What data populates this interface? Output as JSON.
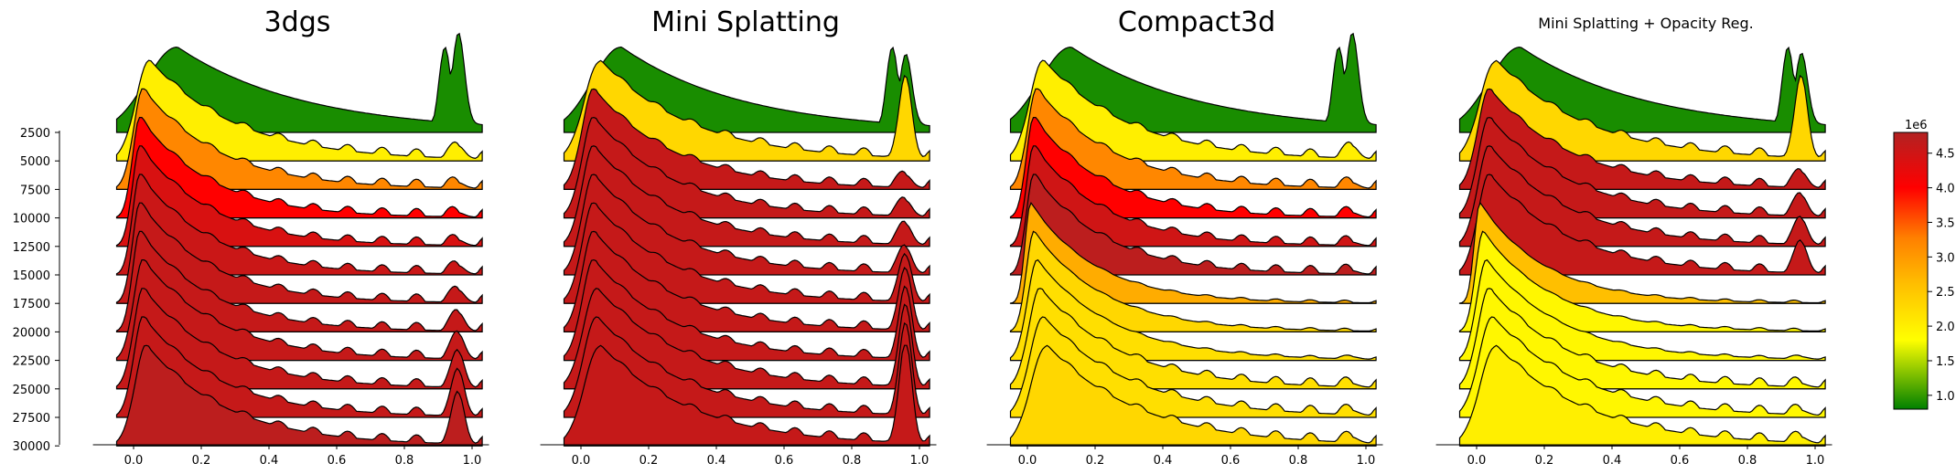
{
  "figure": {
    "panels": [
      {
        "title": "3dgs"
      },
      {
        "title": "Mini Splatting"
      },
      {
        "title": "Compact3d"
      },
      {
        "title": "Mini Splatting + Opacity Reg."
      }
    ],
    "colorbar": {
      "multiplier_label": "1e6",
      "tick_labels": [
        "1.0",
        "1.5",
        "2.0",
        "2.5",
        "3.0",
        "3.5",
        "4.0",
        "4.5"
      ]
    }
  },
  "chart_data": {
    "type": "area",
    "description_kind": "ridgeline (joyplot) of opacity distributions per training iteration",
    "x_ticks": [
      0.0,
      0.2,
      0.4,
      0.6,
      0.8,
      1.0
    ],
    "x_tick_labels": [
      "0.0",
      "0.2",
      "0.4",
      "0.6",
      "0.8",
      "1.0"
    ],
    "xlim": [
      -0.12,
      1.05
    ],
    "iterations": [
      2500,
      5000,
      7500,
      10000,
      12500,
      15000,
      17500,
      20000,
      22500,
      25000,
      27500,
      30000
    ],
    "y_tick_labels": [
      "2500",
      "5000",
      "7500",
      "10000",
      "12500",
      "15000",
      "17500",
      "20000",
      "22500",
      "25000",
      "27500",
      "30000"
    ],
    "colorbar": {
      "range": [
        0.8,
        4.8
      ],
      "ticks": [
        1.0,
        1.5,
        2.0,
        2.5,
        3.0,
        3.5,
        4.0,
        4.5
      ],
      "multiplier": "1e6",
      "stops": [
        "#008000",
        "#ffff00",
        "#ffbf00",
        "#ff7f00",
        "#ff0000",
        "#b22222"
      ]
    },
    "series": [
      {
        "panel": "3dgs",
        "gaussians_millions": [
          0.9,
          2.0,
          3.2,
          4.0,
          4.4,
          4.55,
          4.6,
          4.6,
          4.6,
          4.6,
          4.6,
          4.7
        ],
        "ridges": [
          {
            "peak": 0.13,
            "hump": 0.9
          },
          {
            "peak": 0.05,
            "hump": 0.12
          },
          {
            "peak": 0.03,
            "hump": 0.05
          },
          {
            "peak": 0.02,
            "hump": 0.04
          },
          {
            "peak": 0.02,
            "hump": 0.05
          },
          {
            "peak": 0.02,
            "hump": 0.08
          },
          {
            "peak": 0.02,
            "hump": 0.12
          },
          {
            "peak": 0.02,
            "hump": 0.18
          },
          {
            "peak": 0.03,
            "hump": 0.25
          },
          {
            "peak": 0.03,
            "hump": 0.35
          },
          {
            "peak": 0.03,
            "hump": 0.45
          },
          {
            "peak": 0.04,
            "hump": 0.5
          }
        ]
      },
      {
        "panel": "Mini Splatting",
        "gaussians_millions": [
          0.9,
          2.3,
          4.6,
          4.6,
          4.6,
          4.6,
          4.6,
          4.6,
          4.6,
          4.6,
          4.6,
          4.6
        ],
        "ridges": [
          {
            "peak": 0.12,
            "hump": 0.7
          },
          {
            "peak": 0.06,
            "hump": 0.8
          },
          {
            "peak": 0.04,
            "hump": 0.12
          },
          {
            "peak": 0.04,
            "hump": 0.15
          },
          {
            "peak": 0.04,
            "hump": 0.2
          },
          {
            "peak": 0.04,
            "hump": 0.25
          },
          {
            "peak": 0.04,
            "hump": 0.45
          },
          {
            "peak": 0.04,
            "hump": 0.6
          },
          {
            "peak": 0.04,
            "hump": 0.7
          },
          {
            "peak": 0.05,
            "hump": 0.8
          },
          {
            "peak": 0.05,
            "hump": 0.9
          },
          {
            "peak": 0.06,
            "hump": 1.0
          }
        ]
      },
      {
        "panel": "Compact3d",
        "gaussians_millions": [
          0.9,
          2.0,
          3.2,
          4.0,
          4.5,
          4.7,
          2.8,
          2.3,
          2.2,
          2.2,
          2.2,
          2.3
        ],
        "ridges": [
          {
            "peak": 0.13,
            "hump": 0.9
          },
          {
            "peak": 0.05,
            "hump": 0.12
          },
          {
            "peak": 0.03,
            "hump": 0.05
          },
          {
            "peak": 0.02,
            "hump": 0.04
          },
          {
            "peak": 0.02,
            "hump": 0.03
          },
          {
            "peak": 0.02,
            "hump": 0.03
          },
          {
            "peak": 0.01,
            "hump": 0.0
          },
          {
            "peak": 0.02,
            "hump": 0.0
          },
          {
            "peak": 0.03,
            "hump": 0.02
          },
          {
            "peak": 0.04,
            "hump": 0.03
          },
          {
            "peak": 0.05,
            "hump": 0.04
          },
          {
            "peak": 0.06,
            "hump": 0.05
          }
        ]
      },
      {
        "panel": "Mini Splatting + Opacity Reg.",
        "gaussians_millions": [
          0.9,
          2.3,
          4.6,
          4.6,
          4.6,
          4.6,
          2.6,
          1.9,
          1.9,
          1.9,
          1.9,
          2.0
        ],
        "ridges": [
          {
            "peak": 0.13,
            "hump": 0.7
          },
          {
            "peak": 0.06,
            "hump": 0.8
          },
          {
            "peak": 0.04,
            "hump": 0.15
          },
          {
            "peak": 0.04,
            "hump": 0.2
          },
          {
            "peak": 0.04,
            "hump": 0.25
          },
          {
            "peak": 0.04,
            "hump": 0.3
          },
          {
            "peak": 0.01,
            "hump": 0.0
          },
          {
            "peak": 0.02,
            "hump": 0.0
          },
          {
            "peak": 0.03,
            "hump": 0.02
          },
          {
            "peak": 0.04,
            "hump": 0.03
          },
          {
            "peak": 0.05,
            "hump": 0.04
          },
          {
            "peak": 0.06,
            "hump": 0.05
          }
        ]
      }
    ]
  }
}
